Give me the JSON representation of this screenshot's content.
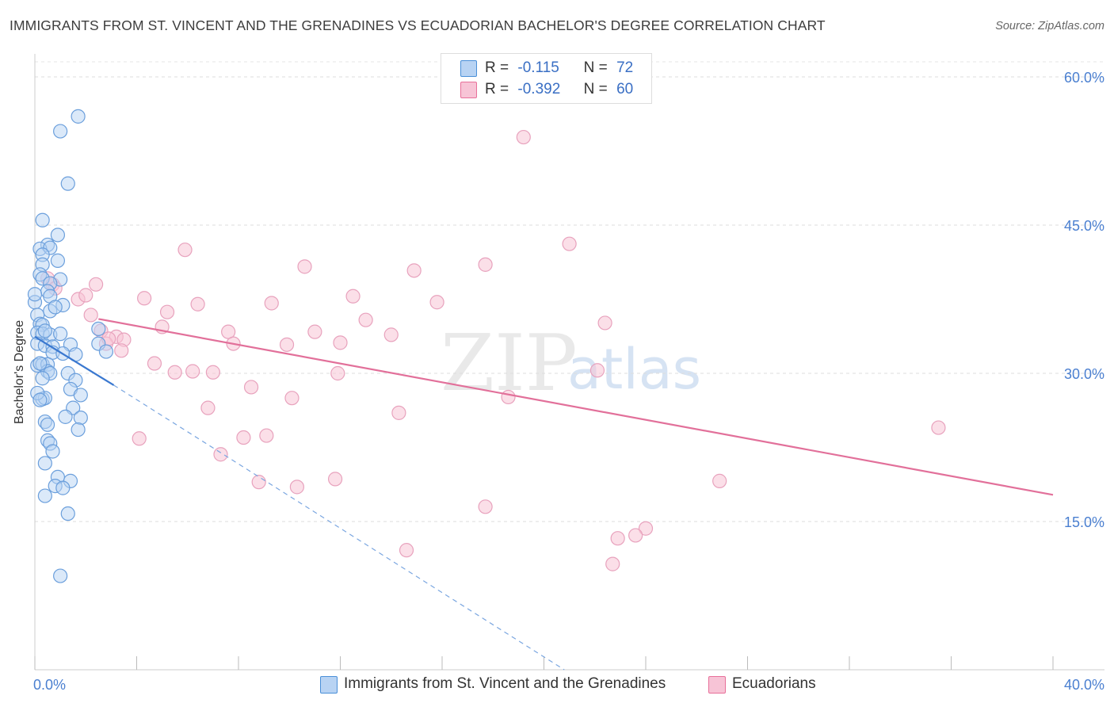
{
  "title": "IMMIGRANTS FROM ST. VINCENT AND THE GRENADINES VS ECUADORIAN BACHELOR'S DEGREE CORRELATION CHART",
  "source": "Source: ZipAtlas.com",
  "watermark": {
    "zip": "ZIP",
    "atlas": "atlas"
  },
  "legend": {
    "rows": [
      {
        "r_label": "R =",
        "r_value": "-0.115",
        "n_label": "N =",
        "n_value": "72"
      },
      {
        "r_label": "R =",
        "r_value": "-0.392",
        "n_label": "N =",
        "n_value": "60"
      }
    ]
  },
  "colors": {
    "blue": "#4a8fd8",
    "blue_fill": "#b8d3f3",
    "pink": "#e8709a",
    "pink_fill": "#f7c4d6",
    "axis_text": "#4a7fd0"
  },
  "chart_data": {
    "type": "scatter",
    "xlabel": "",
    "ylabel": "Bachelor's Degree",
    "xlim": [
      0,
      40
    ],
    "ylim": [
      0,
      62
    ],
    "x_tick_labels": [
      "0.0%",
      "40.0%"
    ],
    "y_ticks": [
      15,
      30,
      45,
      60
    ],
    "y_tick_labels": [
      "15.0%",
      "30.0%",
      "45.0%",
      "60.0%"
    ],
    "grid": true,
    "legend_position": "top-center",
    "series": [
      {
        "name": "Immigrants from St. Vincent and the Grenadines",
        "color": "#4a8fd8",
        "points": [
          [
            1.7,
            56.0
          ],
          [
            1.0,
            54.5
          ],
          [
            1.3,
            49.2
          ],
          [
            0.3,
            45.5
          ],
          [
            0.9,
            44.0
          ],
          [
            0.5,
            43.0
          ],
          [
            0.2,
            42.6
          ],
          [
            0.6,
            42.7
          ],
          [
            0.3,
            42.0
          ],
          [
            0.3,
            41.0
          ],
          [
            0.9,
            41.4
          ],
          [
            0.2,
            40.0
          ],
          [
            0.3,
            39.6
          ],
          [
            1.0,
            39.5
          ],
          [
            0.6,
            39.1
          ],
          [
            0.5,
            38.3
          ],
          [
            0.6,
            37.8
          ],
          [
            0.0,
            37.2
          ],
          [
            1.1,
            36.9
          ],
          [
            0.6,
            36.3
          ],
          [
            0.1,
            35.9
          ],
          [
            0.2,
            35.0
          ],
          [
            0.3,
            34.9
          ],
          [
            2.5,
            34.5
          ],
          [
            0.1,
            34.1
          ],
          [
            0.3,
            34.0
          ],
          [
            0.6,
            33.9
          ],
          [
            0.1,
            33.0
          ],
          [
            0.4,
            32.8
          ],
          [
            0.7,
            32.7
          ],
          [
            1.4,
            32.9
          ],
          [
            2.5,
            33.0
          ],
          [
            0.7,
            32.1
          ],
          [
            1.1,
            32.0
          ],
          [
            1.6,
            31.9
          ],
          [
            2.8,
            32.2
          ],
          [
            0.1,
            30.8
          ],
          [
            0.3,
            30.9
          ],
          [
            0.5,
            30.9
          ],
          [
            0.5,
            30.2
          ],
          [
            0.6,
            30.0
          ],
          [
            1.3,
            30.0
          ],
          [
            0.3,
            29.5
          ],
          [
            1.6,
            29.3
          ],
          [
            1.4,
            28.4
          ],
          [
            1.8,
            27.8
          ],
          [
            0.3,
            27.4
          ],
          [
            0.4,
            27.5
          ],
          [
            1.5,
            26.5
          ],
          [
            1.2,
            25.6
          ],
          [
            1.8,
            25.5
          ],
          [
            0.4,
            25.1
          ],
          [
            0.5,
            24.8
          ],
          [
            1.7,
            24.3
          ],
          [
            0.5,
            23.2
          ],
          [
            0.6,
            22.9
          ],
          [
            0.7,
            22.1
          ],
          [
            0.4,
            20.9
          ],
          [
            0.9,
            19.5
          ],
          [
            1.4,
            19.1
          ],
          [
            0.8,
            18.6
          ],
          [
            1.1,
            18.4
          ],
          [
            0.4,
            17.6
          ],
          [
            1.3,
            15.8
          ],
          [
            1.0,
            9.5
          ],
          [
            0.0,
            38.0
          ],
          [
            0.1,
            28.0
          ],
          [
            0.2,
            31.0
          ],
          [
            0.8,
            36.7
          ],
          [
            0.4,
            34.3
          ],
          [
            1.0,
            34.0
          ],
          [
            0.2,
            27.3
          ]
        ],
        "trend_solid": {
          "x": [
            0.0,
            3.1
          ],
          "y": [
            33.7,
            28.8
          ]
        },
        "trend_dashed": {
          "x": [
            3.1,
            20.8
          ],
          "y": [
            28.8,
            0.0
          ]
        }
      },
      {
        "name": "Ecuadorians",
        "color": "#e8709a",
        "points": [
          [
            19.2,
            53.9
          ],
          [
            21.0,
            43.1
          ],
          [
            5.9,
            42.5
          ],
          [
            10.6,
            40.8
          ],
          [
            17.7,
            41.0
          ],
          [
            14.9,
            40.4
          ],
          [
            2.4,
            39.0
          ],
          [
            0.5,
            39.6
          ],
          [
            0.7,
            39.0
          ],
          [
            1.7,
            37.5
          ],
          [
            0.8,
            38.6
          ],
          [
            2.0,
            37.9
          ],
          [
            4.3,
            37.6
          ],
          [
            12.5,
            37.8
          ],
          [
            6.4,
            37.0
          ],
          [
            9.3,
            37.1
          ],
          [
            15.8,
            37.2
          ],
          [
            5.2,
            36.2
          ],
          [
            2.2,
            35.9
          ],
          [
            13.0,
            35.4
          ],
          [
            22.4,
            35.1
          ],
          [
            5.0,
            34.7
          ],
          [
            2.6,
            34.3
          ],
          [
            7.6,
            34.2
          ],
          [
            11.0,
            34.2
          ],
          [
            14.0,
            33.9
          ],
          [
            3.2,
            33.7
          ],
          [
            3.5,
            33.4
          ],
          [
            2.8,
            33.0
          ],
          [
            7.8,
            33.0
          ],
          [
            9.9,
            32.9
          ],
          [
            12.0,
            33.1
          ],
          [
            3.4,
            32.3
          ],
          [
            4.7,
            31.0
          ],
          [
            5.5,
            30.1
          ],
          [
            6.2,
            30.2
          ],
          [
            7.0,
            30.1
          ],
          [
            11.9,
            30.0
          ],
          [
            22.1,
            30.3
          ],
          [
            8.5,
            28.6
          ],
          [
            10.1,
            27.5
          ],
          [
            18.6,
            27.6
          ],
          [
            6.8,
            26.5
          ],
          [
            14.3,
            26.0
          ],
          [
            35.5,
            24.5
          ],
          [
            4.1,
            23.4
          ],
          [
            8.2,
            23.5
          ],
          [
            9.1,
            23.7
          ],
          [
            7.3,
            21.8
          ],
          [
            8.8,
            19.0
          ],
          [
            10.3,
            18.5
          ],
          [
            11.8,
            19.3
          ],
          [
            26.9,
            19.1
          ],
          [
            17.7,
            16.5
          ],
          [
            24.0,
            14.3
          ],
          [
            23.6,
            13.6
          ],
          [
            22.9,
            13.3
          ],
          [
            14.6,
            12.1
          ],
          [
            22.7,
            10.7
          ],
          [
            2.9,
            33.5
          ]
        ],
        "trend": {
          "x": [
            2.5,
            40.0
          ],
          "y": [
            35.5,
            17.7
          ]
        }
      }
    ]
  },
  "bottom_legend": [
    {
      "label": "Immigrants from St. Vincent and the Grenadines"
    },
    {
      "label": "Ecuadorians"
    }
  ]
}
